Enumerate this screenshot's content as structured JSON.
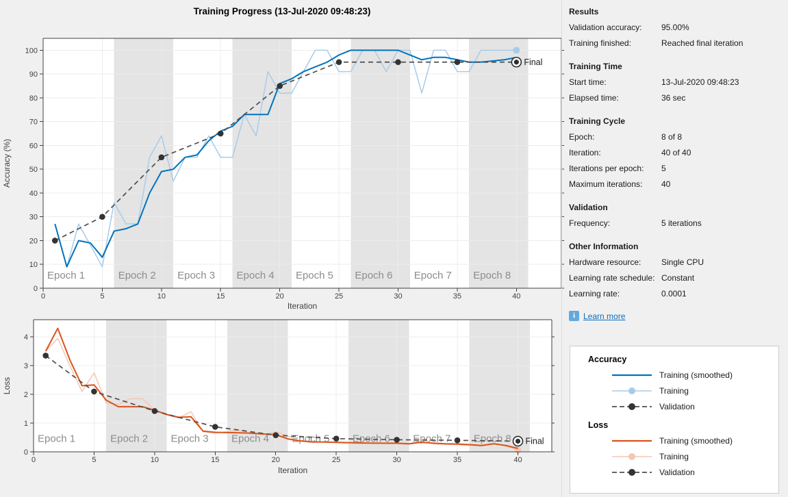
{
  "title": "Training Progress (13-Jul-2020 09:48:23)",
  "colors": {
    "window_bg": "#F0F0F0",
    "plot_bg": "#FFFFFF",
    "epoch_band": "#E4E4E4",
    "grid": "#ECECEC",
    "axis": "#404040",
    "epoch_label": "#8C8C8C",
    "accuracy_smoothed": "#0072BD",
    "accuracy_raw": "#A9CBE8",
    "loss_smoothed": "#D95319",
    "loss_raw": "#F3C7B2",
    "validation": "#4D4D4D",
    "validation_marker": "#333333",
    "final_marker": "#2E2E2E",
    "link": "#0F6CBD",
    "info_icon_bg": "#64A9DC",
    "legend_border": "#CCCCCC"
  },
  "chart_data": [
    {
      "type": "line",
      "name": "accuracy",
      "ylabel": "Accuracy (%)",
      "xlabel": "Iteration",
      "xlim": [
        0,
        43.8
      ],
      "ylim": [
        0,
        105
      ],
      "xticks": [
        0,
        5,
        10,
        15,
        20,
        25,
        30,
        35,
        40
      ],
      "yticks": [
        0,
        10,
        20,
        30,
        40,
        50,
        60,
        70,
        80,
        90,
        100
      ],
      "grid": true,
      "epoch_bands": [
        {
          "label": "Epoch 1",
          "x0": 0,
          "x1": 6,
          "shaded": false
        },
        {
          "label": "Epoch 2",
          "x0": 6,
          "x1": 11,
          "shaded": true
        },
        {
          "label": "Epoch 3",
          "x0": 11,
          "x1": 16,
          "shaded": false
        },
        {
          "label": "Epoch 4",
          "x0": 16,
          "x1": 21,
          "shaded": true
        },
        {
          "label": "Epoch 5",
          "x0": 21,
          "x1": 26,
          "shaded": false
        },
        {
          "label": "Epoch 6",
          "x0": 26,
          "x1": 31,
          "shaded": true
        },
        {
          "label": "Epoch 7",
          "x0": 31,
          "x1": 36,
          "shaded": false
        },
        {
          "label": "Epoch 8",
          "x0": 36,
          "x1": 41,
          "shaded": true
        }
      ],
      "series": [
        {
          "name": "Training",
          "style": "raw",
          "color": "#A9CBE8",
          "final_dot": true,
          "x": [
            1,
            2,
            3,
            4,
            5,
            6,
            7,
            8,
            9,
            10,
            11,
            12,
            13,
            14,
            15,
            16,
            17,
            18,
            19,
            20,
            21,
            22,
            23,
            24,
            25,
            26,
            27,
            28,
            29,
            30,
            31,
            32,
            33,
            34,
            35,
            36,
            37,
            38,
            39,
            40
          ],
          "y": [
            27,
            9,
            27,
            18,
            9,
            36,
            27,
            27,
            55,
            64,
            45,
            55,
            55,
            64,
            55,
            55,
            73,
            64,
            91,
            82,
            82,
            91,
            100,
            100,
            91,
            91,
            100,
            100,
            91,
            100,
            100,
            82,
            100,
            100,
            91,
            91,
            100,
            100,
            100,
            100
          ]
        },
        {
          "name": "Training (smoothed)",
          "style": "smoothed",
          "color": "#0072BD",
          "x": [
            1,
            2,
            3,
            4,
            5,
            6,
            7,
            8,
            9,
            10,
            11,
            12,
            13,
            14,
            15,
            16,
            17,
            18,
            19,
            20,
            21,
            22,
            23,
            24,
            25,
            26,
            27,
            28,
            29,
            30,
            31,
            32,
            33,
            34,
            35,
            36,
            37,
            38,
            39,
            40
          ],
          "y": [
            27,
            9,
            20,
            19,
            13,
            24,
            25,
            27,
            40,
            49,
            50,
            55,
            56,
            62,
            66,
            68,
            73,
            73,
            73,
            86,
            88,
            91,
            93,
            95,
            98,
            100,
            100,
            100,
            100,
            100,
            98,
            96,
            97,
            97,
            96,
            95,
            95,
            95.5,
            96,
            97
          ]
        },
        {
          "name": "Validation",
          "style": "validation",
          "color": "#4D4D4D",
          "final_label": "Final",
          "x": [
            1,
            5,
            10,
            15,
            20,
            25,
            30,
            35,
            40
          ],
          "y": [
            20,
            30,
            55,
            65,
            85,
            95,
            95,
            95,
            95
          ]
        }
      ]
    },
    {
      "type": "line",
      "name": "loss",
      "ylabel": "Loss",
      "xlabel": "Iteration",
      "xlim": [
        0,
        42.8
      ],
      "ylim": [
        0,
        4.6
      ],
      "xticks": [
        0,
        5,
        10,
        15,
        20,
        25,
        30,
        35,
        40
      ],
      "yticks": [
        0,
        1,
        2,
        3,
        4
      ],
      "grid": true,
      "epoch_bands": [
        {
          "label": "Epoch 1",
          "x0": 0,
          "x1": 6,
          "shaded": false
        },
        {
          "label": "Epoch 2",
          "x0": 6,
          "x1": 11,
          "shaded": true
        },
        {
          "label": "Epoch 3",
          "x0": 11,
          "x1": 16,
          "shaded": false
        },
        {
          "label": "Epoch 4",
          "x0": 16,
          "x1": 21,
          "shaded": true
        },
        {
          "label": "Epoch 5",
          "x0": 21,
          "x1": 26,
          "shaded": false
        },
        {
          "label": "Epoch 6",
          "x0": 26,
          "x1": 31,
          "shaded": true
        },
        {
          "label": "Epoch 7",
          "x0": 31,
          "x1": 36,
          "shaded": false
        },
        {
          "label": "Epoch 8",
          "x0": 36,
          "x1": 41,
          "shaded": true
        }
      ],
      "series": [
        {
          "name": "Training",
          "style": "raw",
          "color": "#F3C7B2",
          "final_dot": true,
          "x": [
            1,
            2,
            3,
            4,
            5,
            6,
            7,
            8,
            9,
            10,
            11,
            12,
            13,
            14,
            15,
            16,
            17,
            18,
            19,
            20,
            21,
            22,
            23,
            24,
            25,
            26,
            27,
            28,
            29,
            30,
            31,
            32,
            33,
            34,
            35,
            36,
            37,
            38,
            39,
            40
          ],
          "y": [
            3.5,
            3.95,
            3.0,
            2.1,
            2.75,
            1.7,
            1.65,
            1.85,
            1.85,
            1.45,
            1.28,
            1.18,
            1.4,
            0.7,
            0.65,
            0.7,
            0.75,
            0.62,
            0.6,
            0.7,
            0.55,
            0.38,
            0.32,
            0.35,
            0.32,
            0.3,
            0.28,
            0.32,
            0.28,
            0.28,
            0.26,
            0.45,
            0.28,
            0.26,
            0.25,
            0.22,
            0.2,
            0.3,
            0.2,
            0.06
          ]
        },
        {
          "name": "Training (smoothed)",
          "style": "smoothed",
          "color": "#D95319",
          "x": [
            1,
            2,
            3,
            4,
            5,
            6,
            7,
            8,
            9,
            10,
            11,
            12,
            13,
            14,
            15,
            16,
            17,
            18,
            19,
            20,
            21,
            22,
            23,
            24,
            25,
            26,
            27,
            28,
            29,
            30,
            31,
            32,
            33,
            34,
            35,
            36,
            37,
            38,
            39,
            40
          ],
          "y": [
            3.5,
            4.3,
            3.2,
            2.3,
            2.33,
            1.8,
            1.57,
            1.57,
            1.57,
            1.45,
            1.3,
            1.2,
            1.22,
            0.72,
            0.68,
            0.67,
            0.66,
            0.65,
            0.62,
            0.6,
            0.45,
            0.38,
            0.35,
            0.34,
            0.33,
            0.32,
            0.31,
            0.3,
            0.3,
            0.3,
            0.28,
            0.33,
            0.3,
            0.28,
            0.27,
            0.25,
            0.22,
            0.28,
            0.22,
            0.12
          ]
        },
        {
          "name": "Validation",
          "style": "validation",
          "color": "#4D4D4D",
          "final_label": "Final",
          "x": [
            1,
            5,
            10,
            15,
            20,
            25,
            30,
            35,
            40
          ],
          "y": [
            3.35,
            2.1,
            1.42,
            0.87,
            0.58,
            0.46,
            0.42,
            0.4,
            0.37
          ]
        }
      ]
    }
  ],
  "legend": {
    "groups": [
      {
        "title": "Accuracy",
        "items": [
          {
            "label": "Training (smoothed)",
            "style": "smoothed",
            "color": "#0072BD"
          },
          {
            "label": "Training",
            "style": "raw",
            "color": "#A9CBE8"
          },
          {
            "label": "Validation",
            "style": "validation",
            "color": "#4D4D4D"
          }
        ]
      },
      {
        "title": "Loss",
        "items": [
          {
            "label": "Training (smoothed)",
            "style": "smoothed",
            "color": "#D95319"
          },
          {
            "label": "Training",
            "style": "raw",
            "color": "#F3C7B2"
          },
          {
            "label": "Validation",
            "style": "validation",
            "color": "#4D4D4D"
          }
        ]
      }
    ]
  },
  "info_panel": {
    "sections": [
      {
        "title": "Results",
        "rows": [
          {
            "label": "Validation accuracy:",
            "value": "95.00%"
          },
          {
            "label": "Training finished:",
            "value": "Reached final iteration"
          }
        ]
      },
      {
        "title": "Training Time",
        "rows": [
          {
            "label": "Start time:",
            "value": "13-Jul-2020 09:48:23"
          },
          {
            "label": "Elapsed time:",
            "value": "36 sec"
          }
        ]
      },
      {
        "title": "Training Cycle",
        "rows": [
          {
            "label": "Epoch:",
            "value": "8 of 8"
          },
          {
            "label": "Iteration:",
            "value": "40 of 40"
          },
          {
            "label": "Iterations per epoch:",
            "value": "5"
          },
          {
            "label": "Maximum iterations:",
            "value": "40"
          }
        ]
      },
      {
        "title": "Validation",
        "rows": [
          {
            "label": "Frequency:",
            "value": "5 iterations"
          }
        ]
      },
      {
        "title": "Other Information",
        "rows": [
          {
            "label": "Hardware resource:",
            "value": "Single CPU"
          },
          {
            "label": "Learning rate schedule:",
            "value": "Constant"
          },
          {
            "label": "Learning rate:",
            "value": "0.0001"
          }
        ]
      }
    ],
    "learn_more": {
      "label": "Learn more"
    }
  }
}
